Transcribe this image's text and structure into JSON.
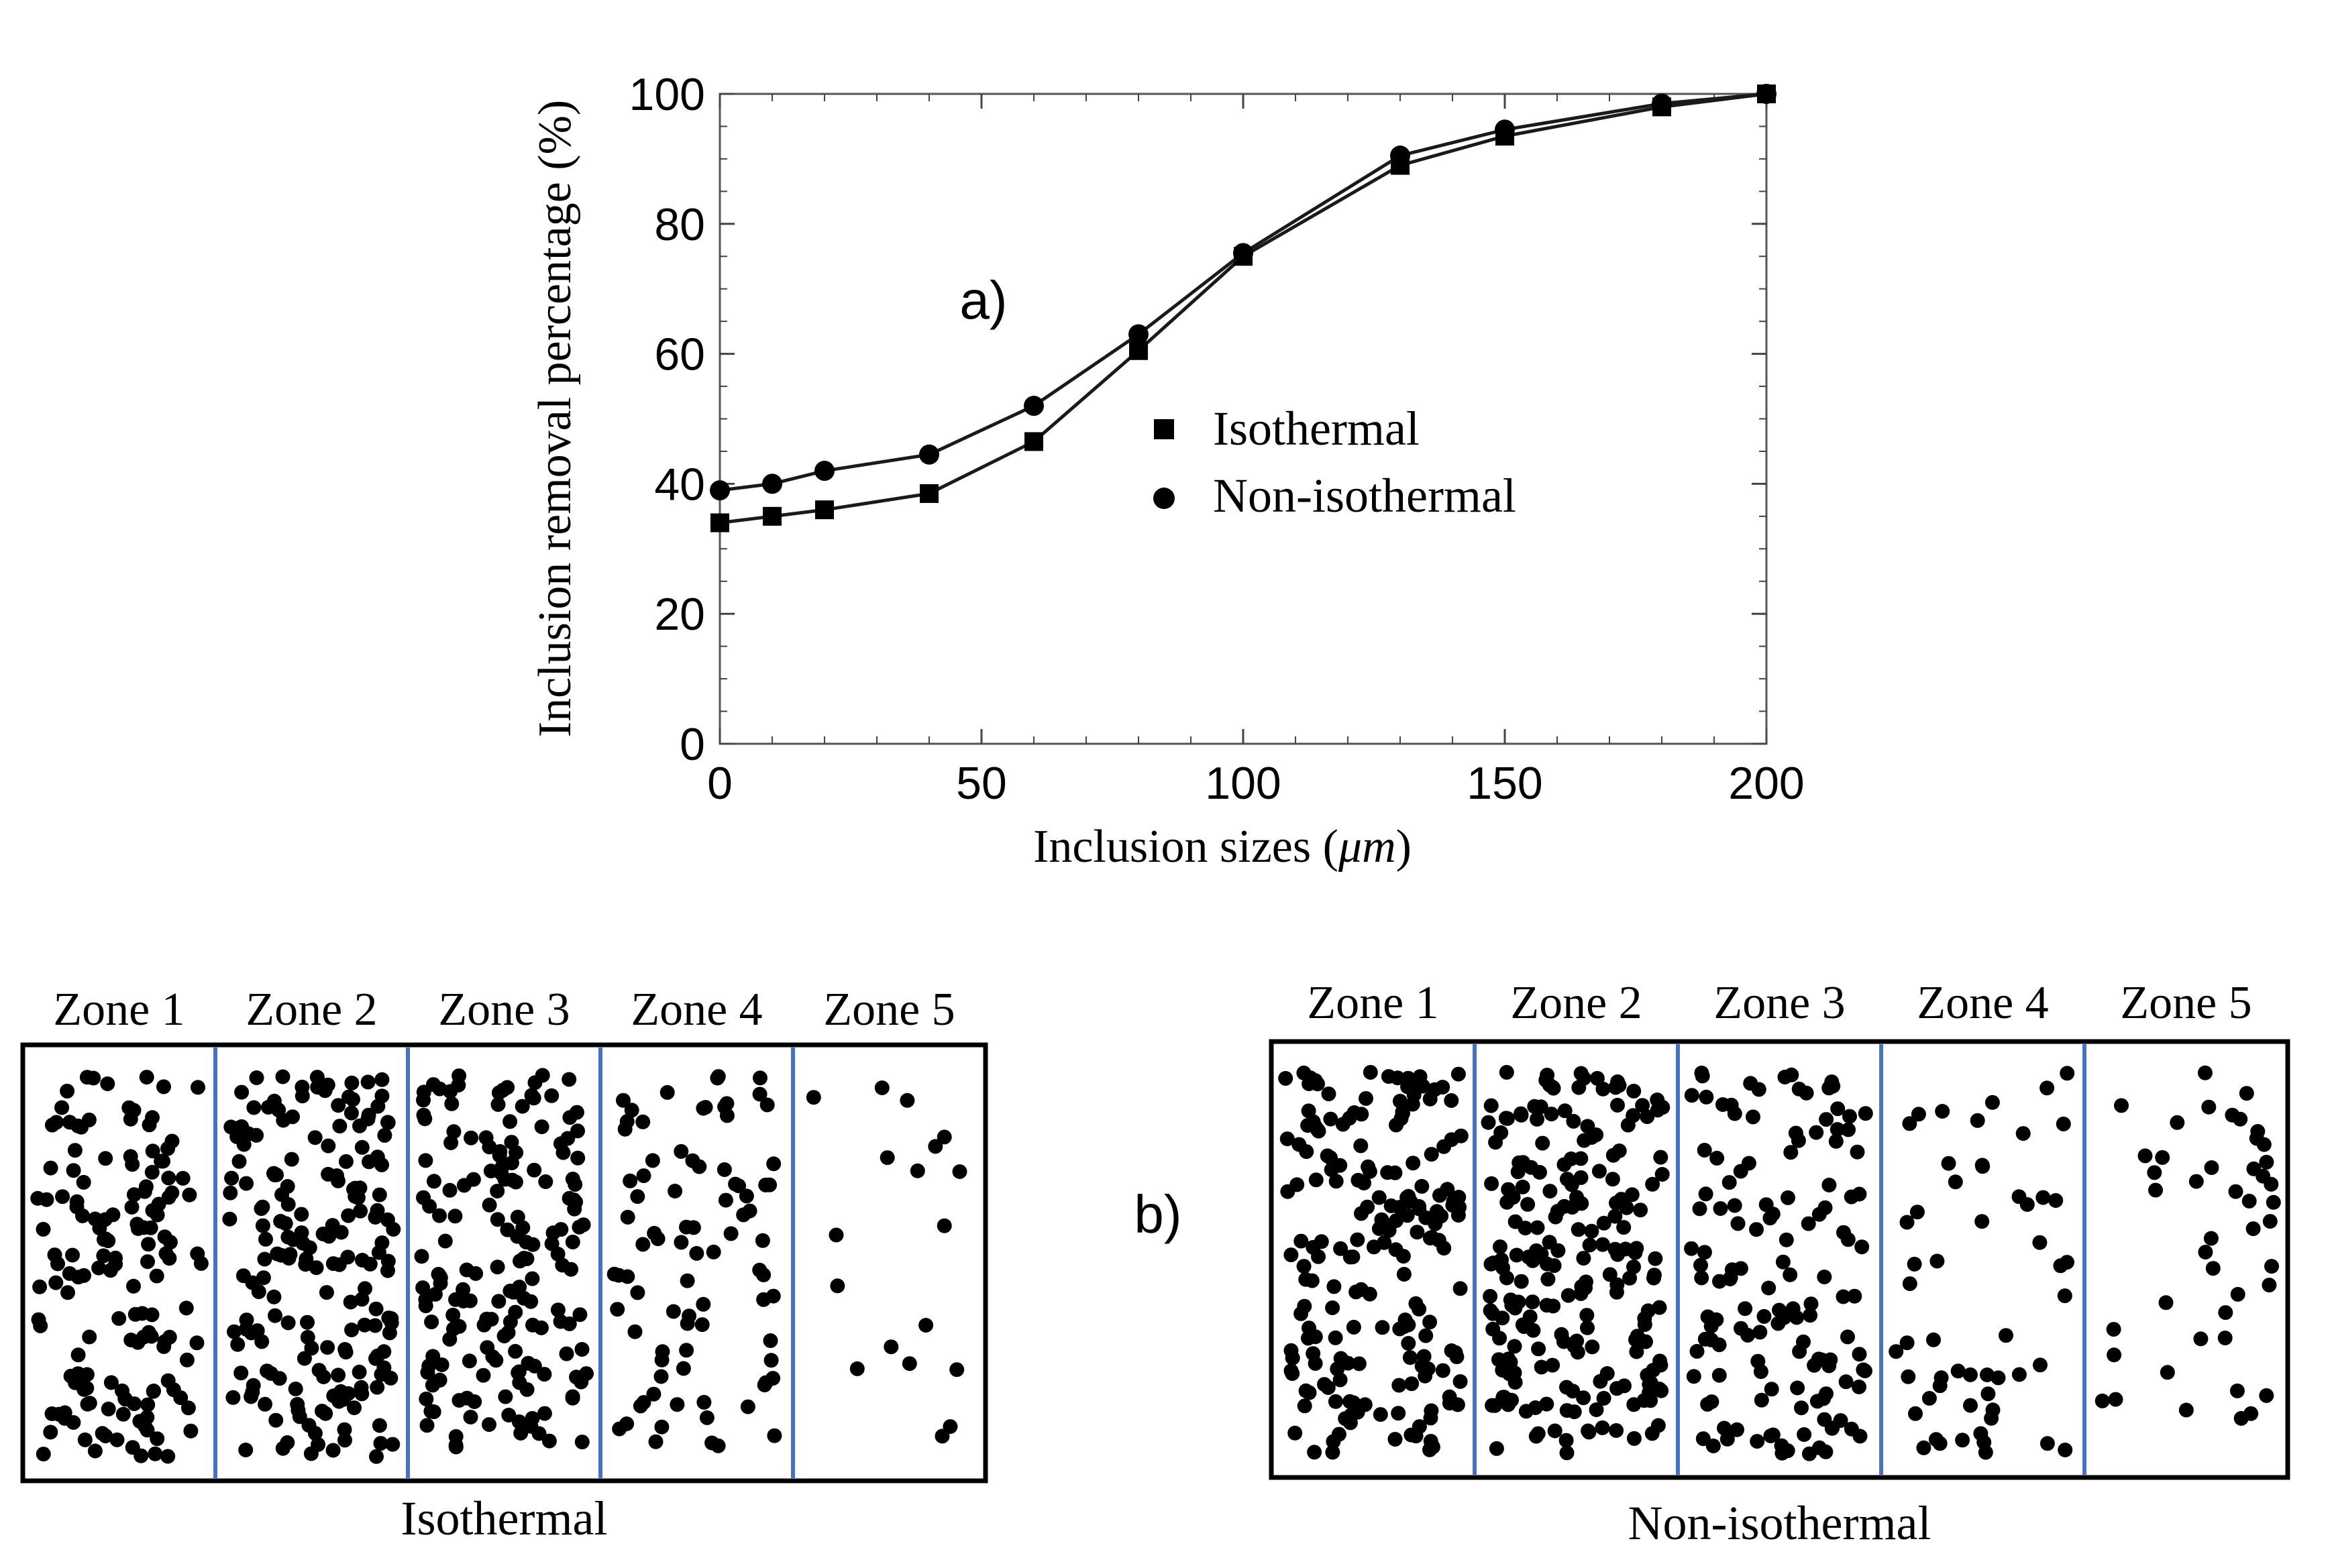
{
  "chart_data": {
    "type": "line",
    "panel_label": "a)",
    "xlabel_prefix": "Inclusion sizes (",
    "xlabel_unit": "μm",
    "xlabel_suffix": ")",
    "ylabel": "Inclusion removal percentage (%)",
    "xlim": [
      0,
      200
    ],
    "ylim": [
      0,
      100
    ],
    "xticks": [
      0,
      50,
      100,
      150,
      200
    ],
    "yticks": [
      0,
      20,
      40,
      60,
      80,
      100
    ],
    "x": [
      0,
      10,
      20,
      40,
      60,
      80,
      100,
      130,
      150,
      180,
      200
    ],
    "series": [
      {
        "name": "Isothermal",
        "marker": "square",
        "values": [
          34,
          35,
          36,
          38.5,
          46.5,
          60.5,
          75,
          89,
          93.5,
          98,
          100
        ]
      },
      {
        "name": "Non-isothermal",
        "marker": "circle",
        "values": [
          39,
          40,
          42,
          44.5,
          52,
          63,
          75.5,
          90.5,
          94.5,
          98.5,
          100
        ]
      }
    ],
    "legend_position": "center-right"
  },
  "panel_b": {
    "label": "b)",
    "diagrams": [
      {
        "caption": "Isothermal",
        "zones": [
          "Zone 1",
          "Zone 2",
          "Zone 3",
          "Zone 4",
          "Zone 5"
        ],
        "particle_counts": [
          150,
          190,
          175,
          85,
          18
        ]
      },
      {
        "caption": "Non-isothermal",
        "zones": [
          "Zone 1",
          "Zone 2",
          "Zone 3",
          "Zone 4",
          "Zone 5"
        ],
        "particle_counts": [
          190,
          215,
          135,
          55,
          45
        ]
      }
    ]
  },
  "colors": {
    "line": "#1a1a1a",
    "marker": "#000000",
    "zone_divider": "#4472c4",
    "frame": "#000000",
    "axis": "#444444"
  }
}
